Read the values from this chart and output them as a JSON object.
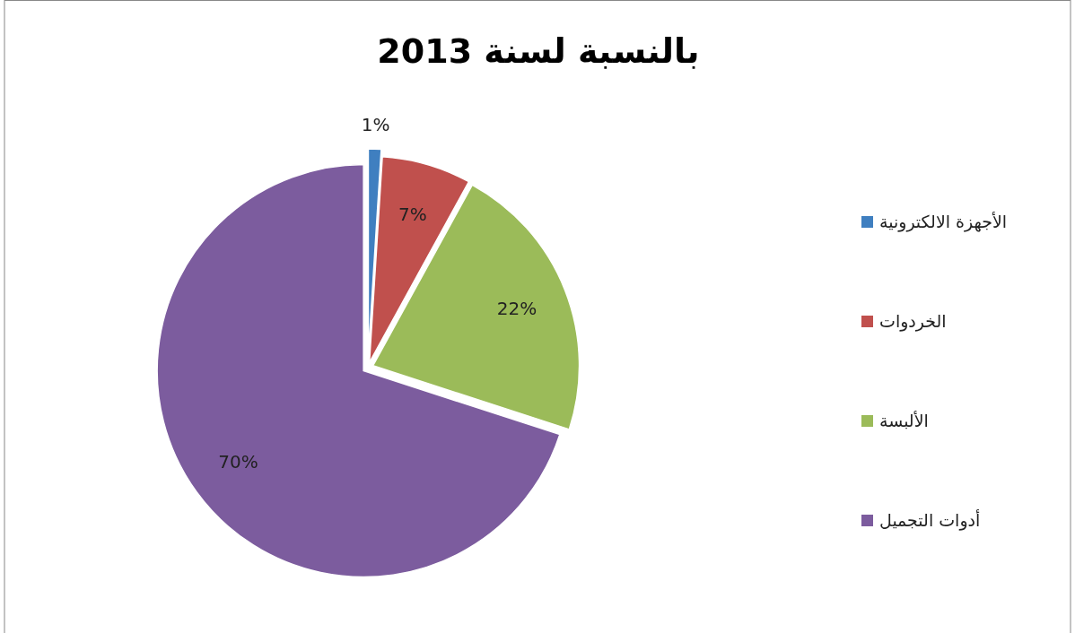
{
  "chart_data": {
    "type": "pie",
    "title": "بالنسبة لسنة 2013",
    "categories": [
      "الأجهزة الالكترونية",
      "الخردوات",
      "الألبسة",
      "أدوات التجميل"
    ],
    "values": [
      1,
      7,
      22,
      70
    ],
    "colors": [
      "#3f7fc0",
      "#c0504d",
      "#9bbb59",
      "#7c5c9e"
    ],
    "value_labels": [
      "1%",
      "7%",
      "22%",
      "70%"
    ],
    "legend": "right"
  }
}
